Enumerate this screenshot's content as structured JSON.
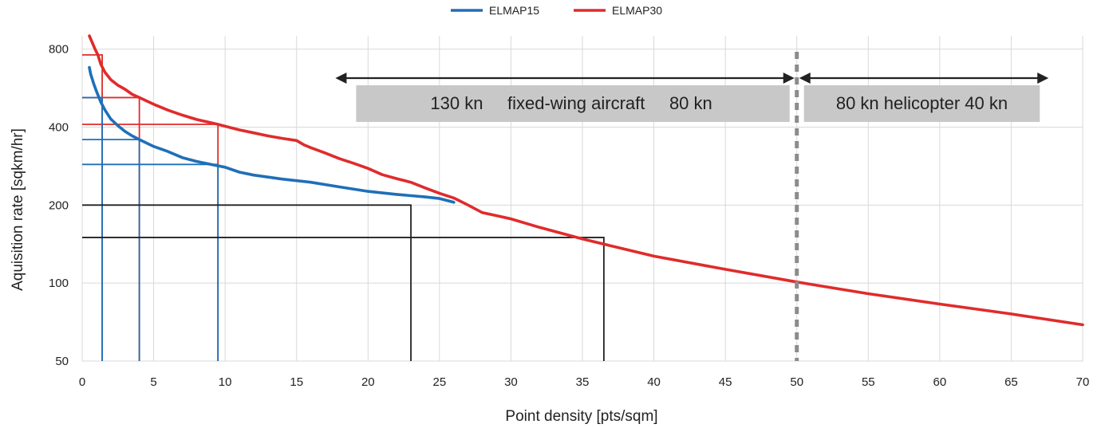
{
  "chart_data": {
    "type": "line",
    "title": "",
    "xlabel": "Point density [pts/sqm]",
    "ylabel": "Aquisition rate [sqkm/hr]",
    "xlim": [
      0,
      70
    ],
    "ylim": [
      50,
      900
    ],
    "y_scale": "log",
    "x_ticks": [
      0,
      5,
      10,
      15,
      20,
      25,
      30,
      35,
      40,
      45,
      50,
      55,
      60,
      65,
      70
    ],
    "y_ticks": [
      50,
      100,
      200,
      400,
      800
    ],
    "grid": true,
    "legend_position": "top-center",
    "series": [
      {
        "name": "ELMAP15",
        "color": "#1f6fb8",
        "x": [
          0.5,
          0.6,
          0.8,
          1.0,
          1.3,
          1.6,
          2.0,
          2.5,
          3.0,
          3.5,
          4.0,
          5.0,
          6.0,
          7.0,
          8.0,
          9.0,
          10.0,
          11.0,
          12.0,
          14.0,
          16.0,
          18.0,
          20.0,
          22.0,
          24.0,
          25.0,
          26.0
        ],
        "y": [
          680,
          640,
          590,
          550,
          500,
          465,
          430,
          405,
          385,
          370,
          358,
          337,
          322,
          305,
          295,
          287,
          280,
          268,
          261,
          252,
          245,
          235,
          226,
          220,
          215,
          212,
          205
        ]
      },
      {
        "name": "ELMAP30",
        "color": "#e02b2b",
        "x": [
          0.5,
          0.7,
          0.9,
          1.1,
          1.3,
          1.6,
          2.0,
          2.5,
          3.0,
          3.5,
          4.0,
          5.0,
          6.0,
          7.0,
          8.0,
          9.5,
          10.0,
          11.0,
          12.0,
          13.0,
          14.0,
          15.0,
          15.5,
          16.0,
          17.0,
          18.0,
          19.0,
          20.0,
          21.0,
          22.0,
          23.0,
          24.0,
          25.0,
          26.0,
          27.0,
          28.0,
          29.0,
          30.0,
          32.0,
          35.0,
          38.0,
          40.0,
          45.0,
          50.0,
          55.0,
          60.0,
          65.0,
          70.0
        ],
        "y": [
          900,
          850,
          800,
          760,
          700,
          650,
          610,
          580,
          560,
          535,
          520,
          490,
          465,
          445,
          428,
          410,
          403,
          390,
          380,
          370,
          362,
          355,
          342,
          333,
          318,
          302,
          290,
          277,
          262,
          253,
          245,
          233,
          222,
          213,
          200,
          187,
          182,
          177,
          164,
          148,
          135,
          127,
          113,
          101,
          91,
          83,
          76,
          69
        ]
      }
    ],
    "reference_lines": [
      {
        "x": 1.4,
        "y": 760,
        "color": "#e02b2b"
      },
      {
        "x": 4.0,
        "y": 520,
        "color": "#e02b2b"
      },
      {
        "x": 9.5,
        "y": 410,
        "color": "#e02b2b"
      },
      {
        "x": 1.4,
        "y": 520,
        "color": "#1f6fb8"
      },
      {
        "x": 4.0,
        "y": 358,
        "color": "#1f6fb8"
      },
      {
        "x": 9.5,
        "y": 287,
        "color": "#1f6fb8"
      },
      {
        "x": 23.0,
        "y": 200,
        "color": "#222222"
      },
      {
        "x": 36.5,
        "y": 150,
        "color": "#222222"
      }
    ],
    "divider_x": 50,
    "annotations": [
      {
        "text": "130 kn     fixed-wing aircraft     80 kn",
        "x_from": 18.5,
        "x_to": 49.5
      },
      {
        "text": "80 kn helicopter 40 kn",
        "x_from": 50.5,
        "x_to": 67
      }
    ]
  },
  "colors": {
    "grid": "#d9d9d9",
    "band_fill": "#c8c8c8",
    "divider": "#8c8c8c",
    "axis_text": "#222222"
  }
}
